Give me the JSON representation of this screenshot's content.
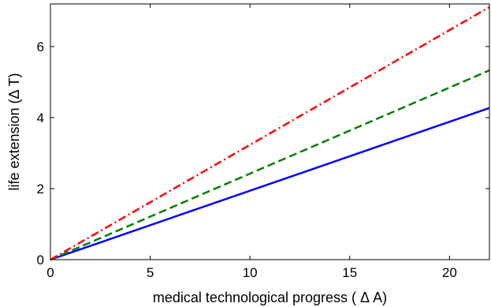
{
  "chart_data": {
    "type": "line",
    "title": "",
    "xlabel": "medical technological progress ( Δ A)",
    "ylabel": "life extension (Δ T)",
    "xlim": [
      0,
      22
    ],
    "ylim": [
      0,
      7.2
    ],
    "xticks": [
      0,
      5,
      10,
      15,
      20
    ],
    "yticks": [
      0,
      2,
      4,
      6
    ],
    "grid": false,
    "legend": "none",
    "series": [
      {
        "x": [
          0,
          22
        ],
        "y": [
          0,
          4.27
        ],
        "color": "#0000ff",
        "style": "solid"
      },
      {
        "x": [
          0,
          22
        ],
        "y": [
          0,
          5.33
        ],
        "color": "#007f00",
        "style": "dashed"
      },
      {
        "x": [
          0,
          22
        ],
        "y": [
          0,
          7.11
        ],
        "color": "#ff0000",
        "style": "dashdot"
      }
    ]
  }
}
